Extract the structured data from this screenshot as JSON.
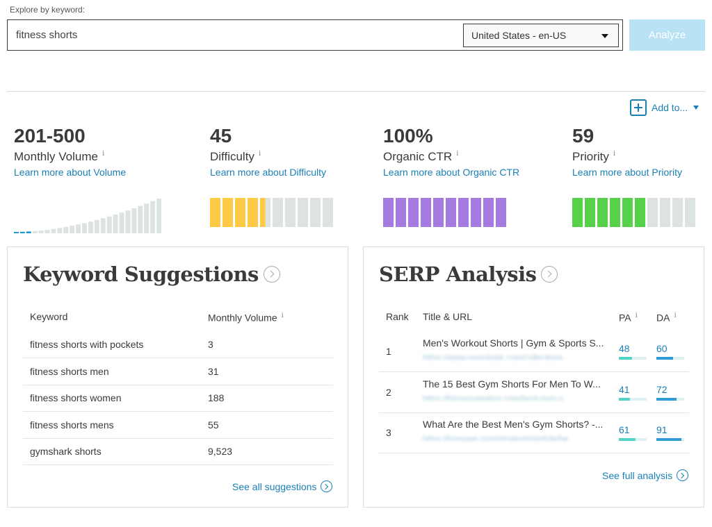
{
  "search": {
    "label": "Explore by keyword:",
    "value": "fitness shorts",
    "locale": "United States - en-US",
    "analyze_label": "Analyze"
  },
  "add_to": {
    "label": "Add to..."
  },
  "metrics": [
    {
      "value": "201-500",
      "label": "Monthly Volume",
      "info": "i",
      "link": "Learn more about Volume"
    },
    {
      "value": "45",
      "label": "Difficulty",
      "info": "i",
      "link": "Learn more about Difficulty"
    },
    {
      "value": "100%",
      "label": "Organic CTR",
      "info": "i",
      "link": "Learn more about Organic CTR"
    },
    {
      "value": "59",
      "label": "Priority",
      "info": "i",
      "link": "Learn more about Priority"
    }
  ],
  "gauges": {
    "volume_bars": 24,
    "volume_highlighted": 3,
    "difficulty_filled": 4.5,
    "difficulty_total": 10,
    "ctr_filled": 10,
    "ctr_total": 10,
    "priority_filled": 6,
    "priority_total": 10,
    "colors": {
      "difficulty": "#ffcb47",
      "ctr": "#a57be0",
      "priority": "#56d14a",
      "empty": "#dde3e3",
      "volume_active": "#2196c9",
      "volume_inactive": "#dde3e3"
    }
  },
  "keyword_suggestions": {
    "title": "Keyword Suggestions",
    "col_keyword": "Keyword",
    "col_volume": "Monthly Volume",
    "info": "i",
    "rows": [
      {
        "keyword": "fitness shorts with pockets",
        "volume": "3"
      },
      {
        "keyword": "fitness shorts men",
        "volume": "31"
      },
      {
        "keyword": "fitness shorts women",
        "volume": "188"
      },
      {
        "keyword": "fitness shorts mens",
        "volume": "55"
      },
      {
        "keyword": "gymshark shorts",
        "volume": "9,523"
      }
    ],
    "see_all": "See all suggestions"
  },
  "serp_analysis": {
    "title": "SERP Analysis",
    "col_rank": "Rank",
    "col_title": "Title & URL",
    "col_pa": "PA",
    "col_da": "DA",
    "info": "i",
    "rows": [
      {
        "rank": "1",
        "title": "Men's Workout Shorts | Gym & Sports S...",
        "url": "https://www.gymshark.com/collections...",
        "pa": "48",
        "da": "60",
        "pa_pct": 48,
        "da_pct": 60
      },
      {
        "rank": "2",
        "title": "The 15 Best Gym Shorts For Men To W...",
        "url": "https://hiconsumption.com/best-gym-s...",
        "pa": "41",
        "da": "72",
        "pa_pct": 41,
        "da_pct": 72
      },
      {
        "rank": "3",
        "title": "What Are the Best Men's Gym Shorts? -...",
        "url": "https://homage.com/strategist/article/be...",
        "pa": "61",
        "da": "91",
        "pa_pct": 61,
        "da_pct": 91
      }
    ],
    "see_full": "See full analysis",
    "bar_colors": {
      "pa": "#4fd3c4",
      "da": "#2e9bd6",
      "track": "#dff2f1"
    }
  }
}
